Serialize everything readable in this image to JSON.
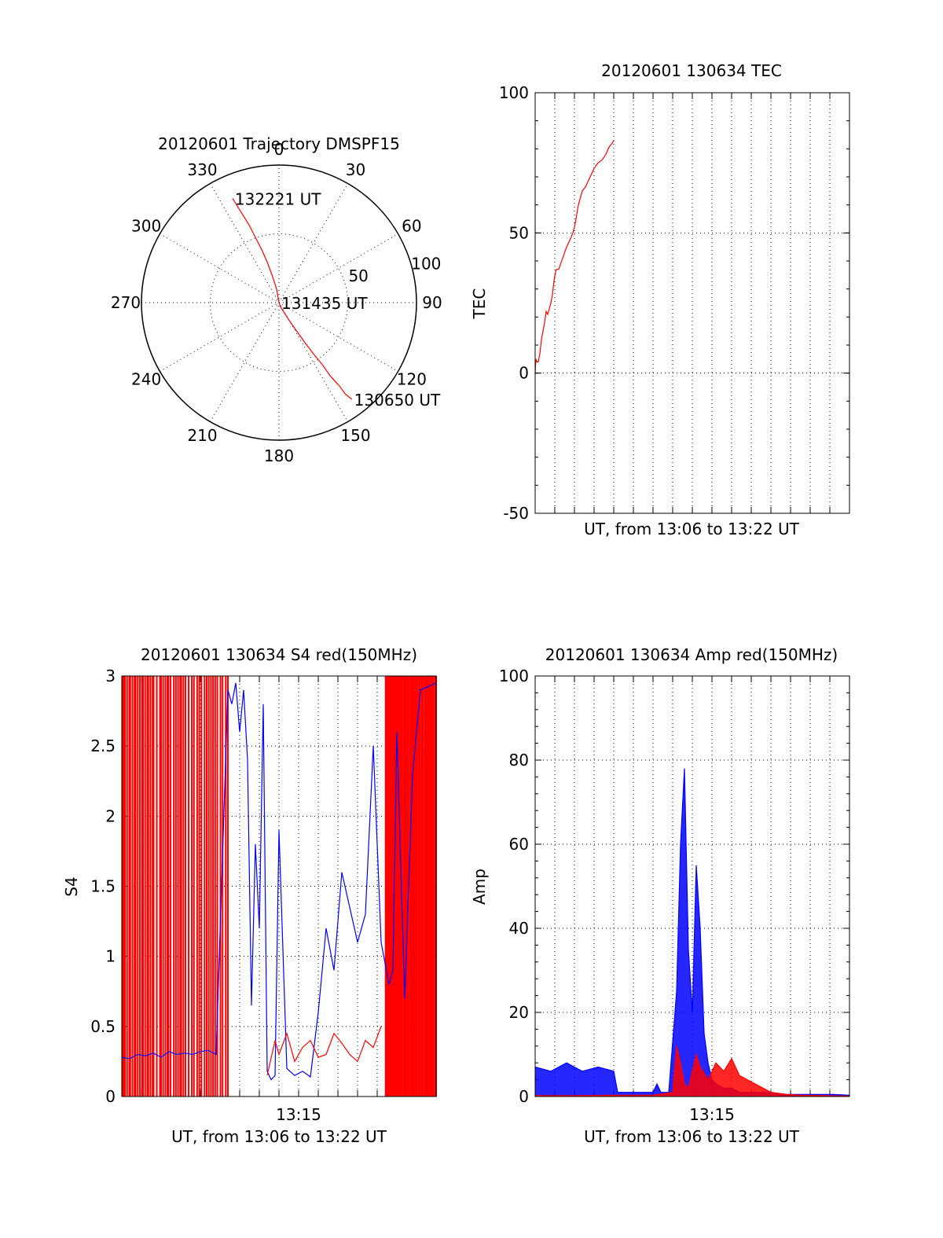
{
  "colors": {
    "red": "#ff0000",
    "blue": "#0000ff",
    "axis": "#000000"
  },
  "chart_data": [
    {
      "id": "trajectory",
      "type": "polar",
      "title": "20120601 Trajectory DMSPF15",
      "angle_labels": [
        "0",
        "30",
        "60",
        "90",
        "120",
        "150",
        "180",
        "210",
        "240",
        "270",
        "300",
        "330"
      ],
      "radial_labels": [
        "50",
        "100"
      ],
      "radial_range": [
        0,
        100
      ],
      "series": [
        {
          "color": "red",
          "points": [
            [
              336,
              83
            ],
            [
              339,
              60
            ],
            [
              342,
              40
            ],
            [
              344,
              30
            ],
            [
              346,
              20
            ],
            [
              350,
              10
            ],
            [
              0,
              0
            ],
            [
              158,
              4
            ],
            [
              150,
              15
            ],
            [
              148,
              25
            ],
            [
              147,
              35
            ],
            [
              146,
              45
            ],
            [
              145,
              56
            ],
            [
              145,
              65
            ],
            [
              144,
              75
            ],
            [
              144,
              82
            ],
            [
              143,
              88
            ]
          ]
        }
      ],
      "annotations": [
        {
          "text": "132221 UT",
          "az": 336,
          "r": 83
        },
        {
          "text": "131435 UT",
          "az": 0,
          "r": 0
        },
        {
          "text": "130650 UT",
          "az": 143,
          "r": 88
        }
      ]
    },
    {
      "id": "tec",
      "type": "line",
      "title": "20120601 130634 TEC",
      "xlabel": "UT, from 13:06 to 13:22 UT",
      "ylabel": "TEC",
      "ylim": [
        -50,
        100
      ],
      "yticks": [
        -50,
        0,
        50,
        100
      ],
      "x_grid": true,
      "series": [
        {
          "color": "red",
          "x": [
            0,
            0.5,
            1,
            2,
            4,
            6,
            8,
            10,
            12,
            14,
            16,
            18,
            20,
            22,
            24,
            26,
            27,
            30,
            35,
            40,
            45,
            48,
            50,
            52,
            55,
            60,
            63,
            65,
            70,
            75,
            80,
            85,
            90,
            93,
            95,
            98,
            100
          ],
          "y": [
            0,
            3,
            5,
            4,
            4,
            7,
            12,
            15,
            18,
            22,
            21,
            23,
            25,
            28,
            33,
            36,
            37,
            37,
            41,
            45,
            48,
            50,
            52,
            55,
            60,
            65,
            66,
            67,
            70,
            73,
            75,
            76,
            78,
            80,
            81,
            82,
            83
          ]
        }
      ]
    },
    {
      "id": "s4",
      "type": "line",
      "title": "20120601 130634 S4 red(150MHz)",
      "xlabel": "UT, from 13:06 to 13:22 UT",
      "ylabel": "S4",
      "xtick_labels": [
        "13:15"
      ],
      "ylim": [
        0,
        3
      ],
      "yticks": [
        "0",
        "0.5",
        "1",
        "1.5",
        "2",
        "2.5",
        "3"
      ],
      "x_grid": true,
      "red_spikes_x": [
        1,
        2,
        3,
        5,
        7,
        8,
        10,
        12,
        13,
        15,
        17,
        19,
        20,
        22,
        24,
        25,
        27,
        29,
        30,
        33,
        36,
        37,
        39,
        41,
        43,
        44,
        46,
        49,
        51,
        53,
        55,
        56,
        58,
        60,
        63,
        66,
        68,
        71,
        73,
        75,
        78,
        80,
        82,
        84,
        86,
        88,
        90,
        93,
        95,
        98,
        100
      ],
      "red_gap": [
        135,
        335
      ],
      "series": [
        {
          "color": "blue",
          "x": [
            0,
            10,
            20,
            30,
            40,
            50,
            60,
            70,
            80,
            90,
            100,
            110,
            120,
            135,
            140,
            145,
            150,
            155,
            160,
            165,
            170,
            175,
            180,
            185,
            190,
            195,
            200,
            210,
            220,
            230,
            240,
            250,
            255,
            260,
            270,
            280,
            300,
            310,
            320,
            330,
            340,
            345,
            350,
            360,
            370,
            380,
            400
          ],
          "y": [
            0.28,
            0.27,
            0.3,
            0.29,
            0.31,
            0.28,
            0.32,
            0.3,
            0.31,
            0.3,
            0.32,
            0.33,
            0.3,
            2.9,
            2.8,
            2.95,
            2.6,
            2.9,
            2.4,
            0.65,
            1.8,
            1.2,
            2.8,
            0.18,
            0.12,
            0.15,
            1.9,
            0.2,
            0.15,
            0.18,
            0.14,
            0.6,
            0.9,
            1.2,
            0.9,
            1.6,
            1.1,
            1.3,
            2.5,
            1.1,
            0.8,
            0.9,
            2.6,
            0.7,
            2.3,
            2.9,
            2.95
          ]
        },
        {
          "color": "red",
          "x": [
            185,
            195,
            200,
            210,
            220,
            230,
            240,
            250,
            260,
            270,
            280,
            290,
            300,
            310,
            320,
            330
          ],
          "y": [
            0.15,
            0.4,
            0.3,
            0.45,
            0.25,
            0.35,
            0.4,
            0.28,
            0.3,
            0.45,
            0.38,
            0.3,
            0.25,
            0.4,
            0.35,
            0.5
          ]
        }
      ]
    },
    {
      "id": "amp",
      "type": "line",
      "title": "20120601 130634 Amp red(150MHz)",
      "xlabel": "UT, from 13:06 to 13:22 UT",
      "ylabel": "Amp",
      "xtick_labels": [
        "13:15"
      ],
      "ylim": [
        0,
        100
      ],
      "yticks": [
        0,
        20,
        40,
        60,
        80,
        100
      ],
      "x_grid": true,
      "series": [
        {
          "color": "blue",
          "x": [
            0,
            20,
            40,
            60,
            80,
            100,
            105,
            110,
            120,
            130,
            140,
            150,
            155,
            160,
            170,
            180,
            185,
            190,
            195,
            200,
            205,
            210,
            215,
            220,
            225,
            230,
            240,
            250,
            260,
            270,
            280,
            300,
            320,
            340,
            360,
            380,
            400
          ],
          "y": [
            7,
            6,
            8,
            6,
            7,
            6,
            1,
            1,
            1,
            1,
            1,
            1,
            3,
            1,
            1,
            25,
            60,
            78,
            35,
            20,
            55,
            40,
            15,
            8,
            4,
            3,
            2,
            2,
            1,
            1,
            1,
            1,
            0.5,
            0.5,
            0.5,
            0.5,
            0.3
          ]
        },
        {
          "color": "red",
          "x": [
            0,
            50,
            100,
            150,
            175,
            180,
            185,
            190,
            195,
            200,
            205,
            210,
            220,
            230,
            240,
            250,
            260,
            270,
            280,
            290,
            300,
            320,
            340,
            400
          ],
          "y": [
            0.2,
            0.2,
            0.3,
            0.3,
            1,
            12,
            8,
            3,
            2,
            6,
            10,
            7,
            4,
            8,
            6,
            9,
            5,
            4,
            3,
            2,
            1,
            0.5,
            0.3,
            0.1
          ]
        }
      ]
    }
  ]
}
